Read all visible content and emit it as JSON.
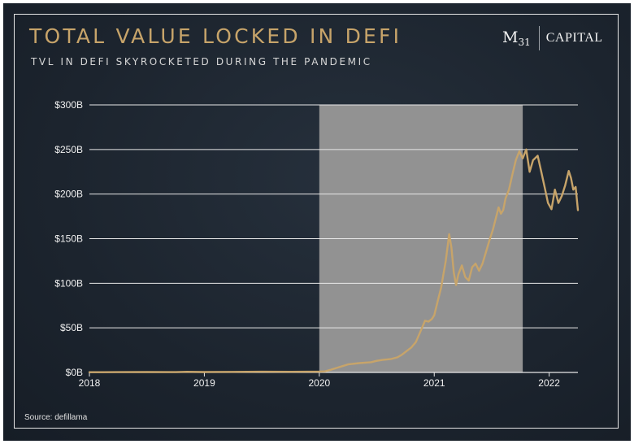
{
  "title": "TOTAL VALUE LOCKED IN DEFI",
  "subtitle": "TVL IN DEFI SKYROCKETED DURING THE PANDEMIC",
  "logo": {
    "brand": "M",
    "brand_sub": "31",
    "name": "CAPITAL"
  },
  "source": "Source: defillama",
  "colors": {
    "background": "#1c242e",
    "title": "#c7a46a",
    "line": "#c7a46a",
    "highlight": "#929292",
    "grid": "#e8e8e8",
    "text": "#f0f0f0"
  },
  "chart_data": {
    "type": "line",
    "title": "TOTAL VALUE LOCKED IN DEFI",
    "subtitle": "TVL IN DEFI SKYROCKETED DURING THE PANDEMIC",
    "xlabel": "",
    "ylabel": "",
    "y_unit": "USD billions",
    "x_range": [
      2018.0,
      2022.25
    ],
    "ylim": [
      0,
      300
    ],
    "y_ticks": [
      0,
      50,
      100,
      150,
      200,
      250,
      300
    ],
    "y_tick_labels": [
      "$0B",
      "$50B",
      "$100B",
      "$150B",
      "$200B",
      "$250B",
      "$300B"
    ],
    "x_ticks": [
      2018,
      2019,
      2020,
      2021,
      2022
    ],
    "x_tick_labels": [
      "2018",
      "2019",
      "2020",
      "2021",
      "2022"
    ],
    "grid": "horizontal",
    "highlight_span": [
      2020.0,
      2021.77
    ],
    "series": [
      {
        "name": "",
        "points": [
          [
            2018.0,
            0.3
          ],
          [
            2018.25,
            0.4
          ],
          [
            2018.5,
            0.5
          ],
          [
            2018.75,
            0.4
          ],
          [
            2018.85,
            0.7
          ],
          [
            2019.0,
            0.5
          ],
          [
            2019.25,
            0.6
          ],
          [
            2019.5,
            0.8
          ],
          [
            2019.75,
            0.7
          ],
          [
            2019.9,
            0.8
          ],
          [
            2020.0,
            0.9
          ],
          [
            2020.05,
            1.2
          ],
          [
            2020.1,
            3.0
          ],
          [
            2020.15,
            5.0
          ],
          [
            2020.2,
            7.0
          ],
          [
            2020.25,
            9.0
          ],
          [
            2020.35,
            10.5
          ],
          [
            2020.45,
            11.5
          ],
          [
            2020.5,
            13.0
          ],
          [
            2020.55,
            14.0
          ],
          [
            2020.62,
            15.0
          ],
          [
            2020.68,
            17.0
          ],
          [
            2020.72,
            20.0
          ],
          [
            2020.76,
            24.0
          ],
          [
            2020.8,
            28.0
          ],
          [
            2020.84,
            34.0
          ],
          [
            2020.87,
            43.0
          ],
          [
            2020.9,
            52.0
          ],
          [
            2020.92,
            58.0
          ],
          [
            2020.95,
            57.0
          ],
          [
            2020.98,
            60.0
          ],
          [
            2021.0,
            64.0
          ],
          [
            2021.03,
            80.0
          ],
          [
            2021.06,
            95.0
          ],
          [
            2021.08,
            110.0
          ],
          [
            2021.1,
            125.0
          ],
          [
            2021.12,
            145.0
          ],
          [
            2021.13,
            155.0
          ],
          [
            2021.15,
            140.0
          ],
          [
            2021.17,
            112.0
          ],
          [
            2021.19,
            98.0
          ],
          [
            2021.21,
            110.0
          ],
          [
            2021.24,
            120.0
          ],
          [
            2021.27,
            107.0
          ],
          [
            2021.3,
            103.0
          ],
          [
            2021.33,
            118.0
          ],
          [
            2021.36,
            122.0
          ],
          [
            2021.39,
            114.0
          ],
          [
            2021.42,
            122.0
          ],
          [
            2021.45,
            135.0
          ],
          [
            2021.48,
            148.0
          ],
          [
            2021.51,
            160.0
          ],
          [
            2021.54,
            175.0
          ],
          [
            2021.56,
            185.0
          ],
          [
            2021.58,
            178.0
          ],
          [
            2021.6,
            182.0
          ],
          [
            2021.62,
            195.0
          ],
          [
            2021.65,
            205.0
          ],
          [
            2021.68,
            222.0
          ],
          [
            2021.71,
            238.0
          ],
          [
            2021.74,
            248.0
          ],
          [
            2021.77,
            240.0
          ],
          [
            2021.8,
            250.0
          ],
          [
            2021.83,
            225.0
          ],
          [
            2021.86,
            238.0
          ],
          [
            2021.9,
            243.0
          ],
          [
            2021.93,
            226.0
          ],
          [
            2021.96,
            208.0
          ],
          [
            2021.99,
            190.0
          ],
          [
            2022.02,
            183.0
          ],
          [
            2022.05,
            205.0
          ],
          [
            2022.08,
            190.0
          ],
          [
            2022.11,
            198.0
          ],
          [
            2022.14,
            210.0
          ],
          [
            2022.17,
            226.0
          ],
          [
            2022.19,
            218.0
          ],
          [
            2022.21,
            205.0
          ],
          [
            2022.23,
            208.0
          ],
          [
            2022.25,
            182.0
          ]
        ]
      }
    ]
  }
}
